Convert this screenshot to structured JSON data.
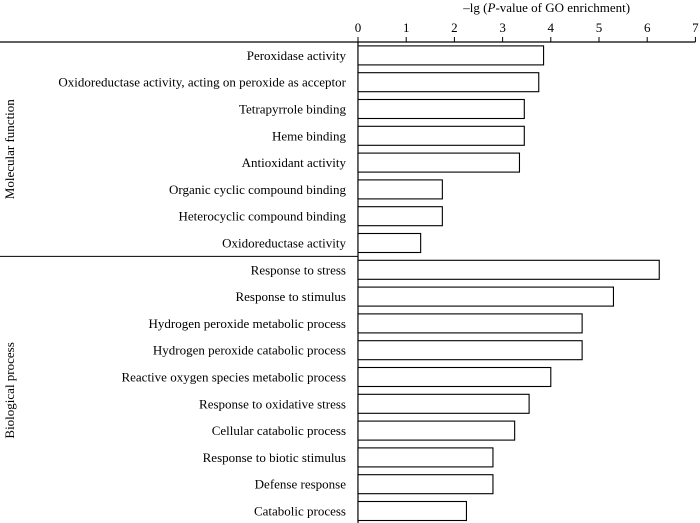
{
  "chart_data": {
    "type": "bar",
    "orientation": "horizontal",
    "xlabel": {
      "prefix": "–lg (",
      "italic": "P",
      "suffix": "-value of GO enrichment)"
    },
    "xlim": [
      0,
      7
    ],
    "xticks": [
      "0",
      "1",
      "2",
      "3",
      "4",
      "5",
      "6",
      "7"
    ],
    "groups": [
      {
        "name": "Molecular function",
        "categories": [
          "Peroxidase activity",
          "Oxidoreductase activity, acting on peroxide as acceptor",
          "Tetrapyrrole binding",
          "Heme binding",
          "Antioxidant activity",
          "Organic cyclic compound binding",
          "Heterocyclic compound binding",
          "Oxidoreductase activity"
        ],
        "values": [
          3.85,
          3.75,
          3.45,
          3.45,
          3.35,
          1.75,
          1.75,
          1.3
        ]
      },
      {
        "name": "Biological process",
        "categories": [
          "Response to stress",
          "Response to stimulus",
          "Hydrogen peroxide metabolic process",
          "Hydrogen peroxide catabolic process",
          "Reactive oxygen species metabolic process",
          "Response to oxidative stress",
          "Cellular catabolic process",
          "Response to biotic stimulus",
          "Defense response",
          "Catabolic process"
        ],
        "values": [
          6.25,
          5.3,
          4.65,
          4.65,
          4.0,
          3.55,
          3.25,
          2.8,
          2.8,
          2.25
        ]
      }
    ],
    "grid": false,
    "legend": "none"
  }
}
